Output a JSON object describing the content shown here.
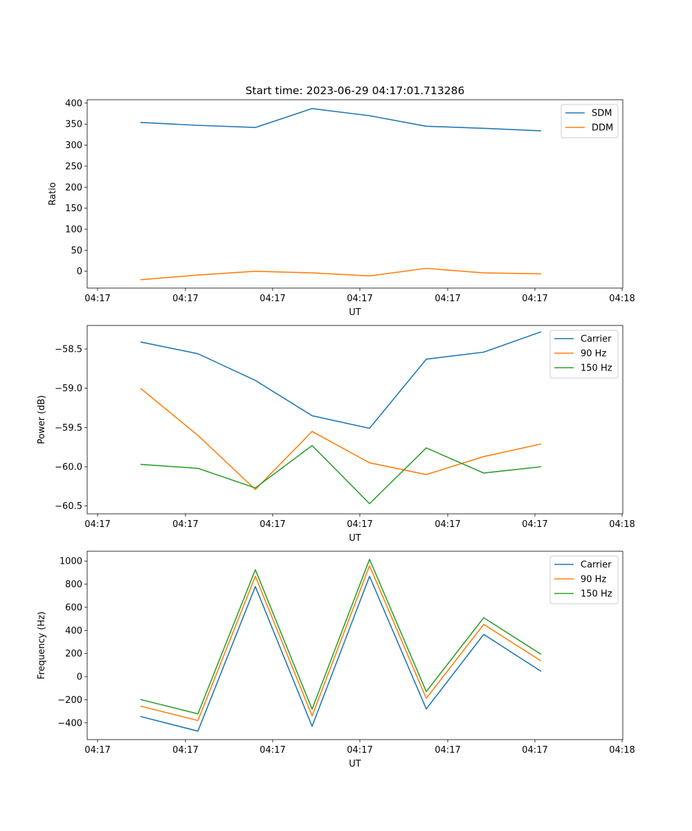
{
  "figure": {
    "title": "Start time: 2023-06-29 04:17:01.713286"
  },
  "chart_data": [
    {
      "type": "line",
      "xlabel": "UT",
      "ylabel": "Ratio",
      "xticks": [
        "04:17",
        "04:17",
        "04:17",
        "04:17",
        "04:17",
        "04:17",
        "04:18"
      ],
      "yticks": [
        0,
        50,
        100,
        150,
        200,
        250,
        300,
        350,
        400
      ],
      "ylim": [
        -40,
        408
      ],
      "legend": "top-right",
      "series": [
        {
          "name": "SDM",
          "color": "#1f77b4",
          "values": [
            354,
            347,
            342,
            387,
            370,
            345,
            340,
            334
          ]
        },
        {
          "name": "DDM",
          "color": "#ff7f0e",
          "values": [
            -20,
            -9,
            0,
            -4,
            -11,
            7,
            -4,
            -6
          ]
        }
      ]
    },
    {
      "type": "line",
      "xlabel": "UT",
      "ylabel": "Power (dB)",
      "xticks": [
        "04:17",
        "04:17",
        "04:17",
        "04:17",
        "04:17",
        "04:17",
        "04:18"
      ],
      "yticks": [
        -58.5,
        -59.0,
        -59.5,
        -60.0,
        -60.5
      ],
      "ytick_labels": [
        "−58.5",
        "−59.0",
        "−59.5",
        "−60.0",
        "−60.5"
      ],
      "ylim": [
        -60.6,
        -58.2
      ],
      "legend": "top-right",
      "series": [
        {
          "name": "Carrier",
          "color": "#1f77b4",
          "values": [
            -58.41,
            -58.56,
            -58.9,
            -59.35,
            -59.51,
            -58.63,
            -58.54,
            -58.28
          ]
        },
        {
          "name": "90 Hz",
          "color": "#ff7f0e",
          "values": [
            -59.0,
            -59.6,
            -60.29,
            -59.55,
            -59.95,
            -60.1,
            -59.87,
            -59.71
          ]
        },
        {
          "name": "150 Hz",
          "color": "#2ca02c",
          "values": [
            -59.97,
            -60.02,
            -60.27,
            -59.73,
            -60.47,
            -59.76,
            -60.08,
            -60.0
          ]
        }
      ]
    },
    {
      "type": "line",
      "xlabel": "UT",
      "ylabel": "Frequency (Hz)",
      "xticks": [
        "04:17",
        "04:17",
        "04:17",
        "04:17",
        "04:17",
        "04:17",
        "04:18"
      ],
      "yticks": [
        -400,
        -200,
        0,
        200,
        400,
        600,
        800,
        1000
      ],
      "ytick_labels": [
        "−400",
        "−200",
        "0",
        "200",
        "400",
        "600",
        "800",
        "1000"
      ],
      "ylim": [
        -545,
        1085
      ],
      "legend": "top-right",
      "series": [
        {
          "name": "Carrier",
          "color": "#1f77b4",
          "values": [
            -345,
            -472,
            780,
            -430,
            868,
            -280,
            365,
            45
          ]
        },
        {
          "name": "90 Hz",
          "color": "#ff7f0e",
          "values": [
            -255,
            -380,
            868,
            -340,
            960,
            -188,
            452,
            135
          ]
        },
        {
          "name": "150 Hz",
          "color": "#2ca02c",
          "values": [
            -198,
            -322,
            925,
            -282,
            1015,
            -130,
            510,
            192
          ]
        }
      ]
    }
  ]
}
